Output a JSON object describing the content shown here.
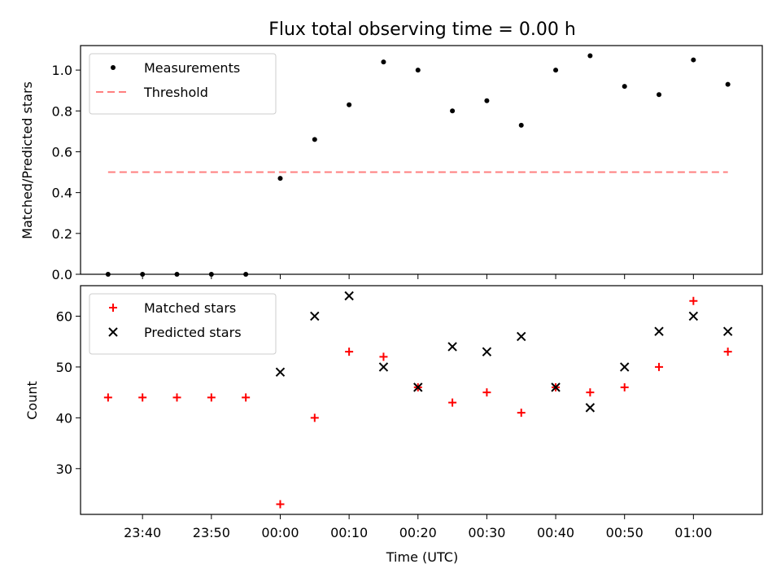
{
  "chart_data": [
    {
      "type": "scatter",
      "title": "Flux total observing time = 0.00 h",
      "xlabel": "",
      "ylabel": "Matched/Predicted stars",
      "xlim": [
        "23:31",
        "01:10"
      ],
      "ylim": [
        0.0,
        1.12
      ],
      "x_ticks": [
        "23:40",
        "23:50",
        "00:00",
        "00:10",
        "00:20",
        "00:30",
        "00:40",
        "00:50",
        "01:00"
      ],
      "y_ticks": [
        0.0,
        0.2,
        0.4,
        0.6,
        0.8,
        1.0
      ],
      "y_tick_labels": [
        "0.0",
        "0.2",
        "0.4",
        "0.6",
        "0.8",
        "1.0"
      ],
      "legend_position": "top-left",
      "grid": false,
      "x": [
        "23:35",
        "23:40",
        "23:45",
        "23:50",
        "23:55",
        "00:00",
        "00:05",
        "00:10",
        "00:15",
        "00:20",
        "00:25",
        "00:30",
        "00:35",
        "00:40",
        "00:45",
        "00:50",
        "00:55",
        "01:00",
        "01:05"
      ],
      "series": [
        {
          "name": "Measurements",
          "style": "dot",
          "color": "#000000",
          "values": [
            0.0,
            0.0,
            0.0,
            0.0,
            0.0,
            0.47,
            0.66,
            0.83,
            1.04,
            1.0,
            0.8,
            0.85,
            0.73,
            1.0,
            1.07,
            0.92,
            0.88,
            1.05,
            0.93
          ]
        },
        {
          "name": "Threshold",
          "style": "dashed-line",
          "color": "#ff7f7f",
          "x": [
            "23:35",
            "01:05"
          ],
          "values": [
            0.5,
            0.5
          ]
        }
      ]
    },
    {
      "type": "scatter",
      "title": "",
      "xlabel": "Time (UTC)",
      "ylabel": "Count",
      "xlim": [
        "23:31",
        "01:10"
      ],
      "ylim": [
        21,
        66
      ],
      "x_ticks": [
        "23:40",
        "23:50",
        "00:00",
        "00:10",
        "00:20",
        "00:30",
        "00:40",
        "00:50",
        "01:00"
      ],
      "y_ticks": [
        30,
        40,
        50,
        60
      ],
      "y_tick_labels": [
        "30",
        "40",
        "50",
        "60"
      ],
      "legend_position": "top-left",
      "grid": false,
      "series": [
        {
          "name": "Matched stars",
          "marker": "plus",
          "color": "#ff0000",
          "x": [
            "23:35",
            "23:40",
            "23:45",
            "23:50",
            "23:55",
            "00:00",
            "00:05",
            "00:10",
            "00:15",
            "00:20",
            "00:25",
            "00:30",
            "00:35",
            "00:40",
            "00:45",
            "00:50",
            "00:55",
            "01:00",
            "01:05"
          ],
          "values": [
            44,
            44,
            44,
            44,
            44,
            23,
            40,
            53,
            52,
            46,
            43,
            45,
            41,
            46,
            45,
            46,
            50,
            63,
            53
          ]
        },
        {
          "name": "Predicted stars",
          "marker": "x",
          "color": "#000000",
          "x": [
            "00:00",
            "00:05",
            "00:10",
            "00:15",
            "00:20",
            "00:25",
            "00:30",
            "00:35",
            "00:40",
            "00:45",
            "00:50",
            "00:55",
            "01:00",
            "01:05"
          ],
          "values": [
            49,
            60,
            64,
            50,
            46,
            54,
            53,
            56,
            46,
            42,
            50,
            57,
            60,
            57
          ]
        }
      ]
    }
  ]
}
